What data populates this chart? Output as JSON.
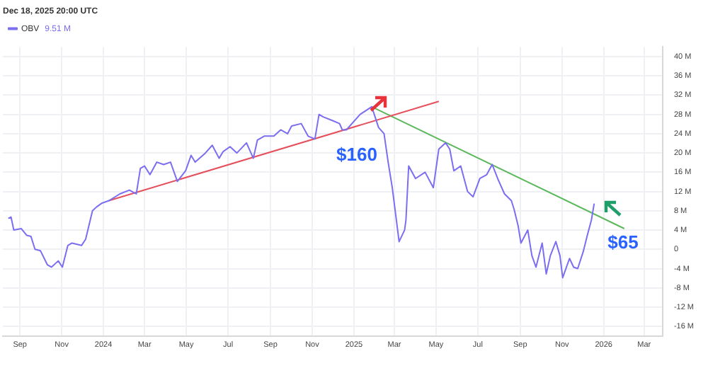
{
  "chart_data": {
    "type": "line",
    "subtitle": "Dec 18, 2025 20:00 UTC",
    "x": [
      "2023-08-15",
      "2023-08-19",
      "2023-08-23",
      "2023-09-03",
      "2023-09-11",
      "2023-09-17",
      "2023-09-23",
      "2023-10-01",
      "2023-10-11",
      "2023-10-17",
      "2023-10-27",
      "2023-11-02",
      "2023-11-10",
      "2023-11-16",
      "2023-11-30",
      "2023-12-06",
      "2023-12-16",
      "2023-12-22",
      "2023-12-30",
      "2024-01-09",
      "2024-01-25",
      "2024-02-08",
      "2024-02-18",
      "2024-02-24",
      "2024-03-01",
      "2024-03-09",
      "2024-03-19",
      "2024-03-29",
      "2024-04-08",
      "2024-04-18",
      "2024-04-30",
      "2024-05-08",
      "2024-05-14",
      "2024-05-29",
      "2024-06-08",
      "2024-06-18",
      "2024-06-24",
      "2024-07-04",
      "2024-07-14",
      "2024-07-28",
      "2024-08-07",
      "2024-08-13",
      "2024-08-23",
      "2024-09-06",
      "2024-09-16",
      "2024-09-26",
      "2024-10-02",
      "2024-10-16",
      "2024-10-26",
      "2024-11-05",
      "2024-11-11",
      "2024-11-17",
      "2024-12-01",
      "2024-12-11",
      "2024-12-15",
      "2024-12-21",
      "2025-01-10",
      "2025-01-27",
      "2025-02-06",
      "2025-02-14",
      "2025-02-20",
      "2025-02-26",
      "2025-03-08",
      "2025-03-16",
      "2025-03-18",
      "2025-03-22",
      "2025-04-01",
      "2025-04-15",
      "2025-04-27",
      "2025-05-05",
      "2025-05-15",
      "2025-05-21",
      "2025-05-27",
      "2025-06-06",
      "2025-06-16",
      "2025-06-24",
      "2025-07-04",
      "2025-07-14",
      "2025-07-22",
      "2025-07-30",
      "2025-08-09",
      "2025-08-19",
      "2025-08-23",
      "2025-08-29",
      "2025-09-02",
      "2025-09-12",
      "2025-09-18",
      "2025-09-24",
      "2025-10-03",
      "2025-10-09",
      "2025-10-15",
      "2025-10-23",
      "2025-10-29",
      "2025-11-02",
      "2025-11-12",
      "2025-11-18",
      "2025-11-24",
      "2025-12-02",
      "2025-12-08",
      "2025-12-14",
      "2025-12-18"
    ],
    "series": [
      {
        "name": "OBV",
        "color": "#7b6ef0",
        "values": [
          6.4,
          6.7,
          4,
          4.3,
          2.9,
          2.7,
          0,
          -0.3,
          -3.2,
          -3.7,
          -2.4,
          -3.7,
          0.8,
          1.3,
          0.8,
          2.1,
          8,
          8.8,
          9.6,
          10.1,
          11.5,
          12.3,
          11.5,
          16.8,
          17.3,
          15.5,
          18.1,
          17.6,
          18.1,
          14.1,
          16.3,
          19.5,
          18.1,
          20,
          21.6,
          18.9,
          20.3,
          21.3,
          20,
          22.1,
          18.9,
          22.7,
          23.5,
          23.5,
          24.8,
          24,
          25.6,
          26.1,
          23.5,
          22.9,
          28,
          27.5,
          26.7,
          26.1,
          24.8,
          24.8,
          28,
          29.6,
          25.3,
          24,
          18.1,
          12.8,
          1.6,
          4,
          6.1,
          17.3,
          14.7,
          16,
          12.8,
          20.8,
          22.1,
          20.8,
          16.3,
          17.3,
          12,
          10.9,
          14.7,
          15.5,
          17.6,
          14.7,
          11.5,
          10.1,
          8.3,
          4.8,
          1.3,
          4,
          -1.3,
          -3.7,
          1.3,
          -5.1,
          -1.3,
          1.6,
          -1.3,
          -5.9,
          -1.9,
          -3.7,
          -4,
          -0.5,
          2.9,
          6.1,
          9.51
        ]
      },
      {
        "color": "#e5505c",
        "x": [
          "2024-01-09",
          "2025-05-05"
        ],
        "values": [
          10.1,
          30.7
        ]
      },
      {
        "color": "#5cb85c",
        "x": [
          "2025-01-27",
          "2026-01-31"
        ],
        "values": [
          29.6,
          4.3
        ]
      }
    ],
    "xlim": [
      "2023-08-07",
      "2026-03-28"
    ],
    "xticks": [
      {
        "value": "2023-09-01",
        "label": "Sep"
      },
      {
        "value": "2023-11-01",
        "label": "Nov"
      },
      {
        "value": "2024-01-01",
        "label": "2024"
      },
      {
        "value": "2024-03-01",
        "label": "Mar"
      },
      {
        "value": "2024-05-01",
        "label": "May"
      },
      {
        "value": "2024-07-01",
        "label": "Jul"
      },
      {
        "value": "2024-09-01",
        "label": "Sep"
      },
      {
        "value": "2024-11-01",
        "label": "Nov"
      },
      {
        "value": "2025-01-01",
        "label": "2025"
      },
      {
        "value": "2025-03-01",
        "label": "Mar"
      },
      {
        "value": "2025-05-01",
        "label": "May"
      },
      {
        "value": "2025-07-01",
        "label": "Jul"
      },
      {
        "value": "2025-09-01",
        "label": "Sep"
      },
      {
        "value": "2025-11-01",
        "label": "Nov"
      },
      {
        "value": "2026-01-01",
        "label": "2026"
      },
      {
        "value": "2026-03-01",
        "label": "Mar"
      }
    ],
    "ylim": [
      -18,
      42
    ],
    "yticks": [
      {
        "value": 40,
        "label": "40 M"
      },
      {
        "value": 36,
        "label": "36 M"
      },
      {
        "value": 32,
        "label": "32 M"
      },
      {
        "value": 28,
        "label": "28 M"
      },
      {
        "value": 24,
        "label": "24 M"
      },
      {
        "value": 20,
        "label": "20 M"
      },
      {
        "value": 16,
        "label": "16 M"
      },
      {
        "value": 12,
        "label": "12 M"
      },
      {
        "value": 8,
        "label": "8 M"
      },
      {
        "value": 4,
        "label": "4 M"
      },
      0,
      {
        "value": -4,
        "label": "-4 M"
      },
      {
        "value": -8,
        "label": "-8 M"
      },
      {
        "value": -12,
        "label": "-12 M"
      },
      {
        "value": -16,
        "label": "-16 M"
      }
    ],
    "annotations": [
      "9.51 M",
      "$160",
      "$65"
    ],
    "grid": true,
    "legend": "top left",
    "marker": "none",
    "line_style": "solid"
  }
}
